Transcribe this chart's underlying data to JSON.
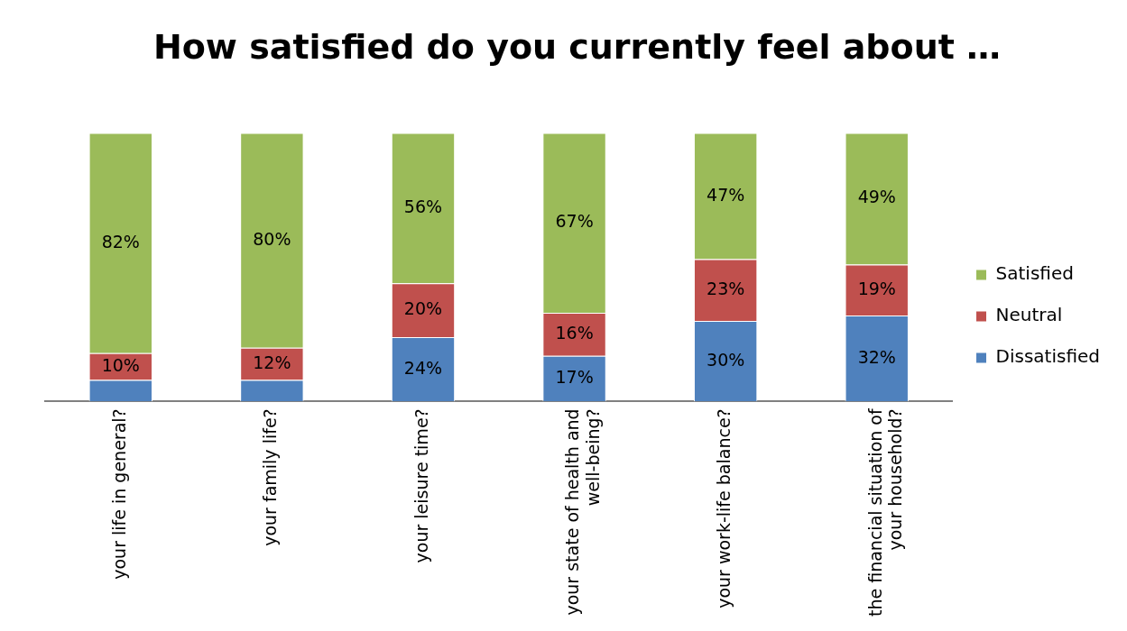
{
  "chart_data": {
    "type": "bar",
    "title": "How satisfied do you currently feel about …",
    "stacked": true,
    "legend": "right",
    "data_labels": false,
    "categories": [
      "your life in general?",
      "your family life?",
      "your leisure time?",
      "your state of health and well-being?",
      "your work-life balance?",
      "the financial situation of your household?"
    ],
    "series": [
      {
        "name": "Dissatisfied",
        "color": "#4f81bd",
        "values": [
          8,
          8,
          24,
          17,
          30,
          32
        ],
        "value_labels": [
          null,
          null,
          "24%",
          "17%",
          "30%",
          "32%"
        ]
      },
      {
        "name": "Neutral",
        "color": "#c0504d",
        "values": [
          10,
          12,
          20,
          16,
          23,
          19
        ],
        "value_labels": [
          "10%",
          "12%",
          "20%",
          "16%",
          "23%",
          "19%"
        ]
      },
      {
        "name": "Satisfied",
        "color": "#9bbb59",
        "values": [
          82,
          80,
          56,
          67,
          47,
          49
        ],
        "value_labels": [
          "82%",
          "80%",
          "56%",
          "67%",
          "47%",
          "49%"
        ]
      }
    ]
  }
}
